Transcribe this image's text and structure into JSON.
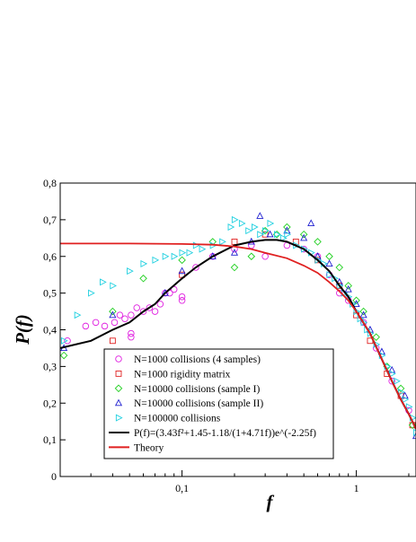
{
  "chart_data": {
    "type": "scatter",
    "xlabel": "f",
    "ylabel": "P(f)",
    "xscale": "log",
    "xlim": [
      0.02,
      2.2
    ],
    "ylim": [
      0,
      0.8
    ],
    "x_ticks": [
      0.1,
      1
    ],
    "x_tick_labels": [
      "0,1",
      "1"
    ],
    "y_ticks": [
      0,
      0.1,
      0.2,
      0.3,
      0.4,
      0.5,
      0.6,
      0.7,
      0.8
    ],
    "y_tick_labels": [
      "0",
      "0,1",
      "0,2",
      "0,3",
      "0,4",
      "0,5",
      "0,6",
      "0,7",
      "0,8"
    ],
    "grid": false,
    "legend_position": "bottom-left",
    "legend_entries": [
      "N=1000 collisions (4 samples)",
      "N=1000 rigidity matrix",
      "N=10000 collisions (sample I)",
      "N=10000 collisions (sample II)",
      "N=100000 collisions",
      "P(f)=(3.43f²+1.45-1.18/(1+4.71f))e^(-2.25f)",
      "Theory"
    ],
    "series": [
      {
        "name": "N=1000 collisions (4 samples)",
        "marker": "circle",
        "color": "#e020e0",
        "points": [
          [
            0.022,
            0.37
          ],
          [
            0.028,
            0.41
          ],
          [
            0.032,
            0.42
          ],
          [
            0.036,
            0.41
          ],
          [
            0.041,
            0.42
          ],
          [
            0.044,
            0.44
          ],
          [
            0.047,
            0.43
          ],
          [
            0.051,
            0.38
          ],
          [
            0.051,
            0.39
          ],
          [
            0.051,
            0.44
          ],
          [
            0.055,
            0.46
          ],
          [
            0.06,
            0.45
          ],
          [
            0.065,
            0.46
          ],
          [
            0.07,
            0.45
          ],
          [
            0.075,
            0.47
          ],
          [
            0.08,
            0.5
          ],
          [
            0.085,
            0.5
          ],
          [
            0.09,
            0.51
          ],
          [
            0.1,
            0.48
          ],
          [
            0.1,
            0.49
          ],
          [
            0.12,
            0.57
          ],
          [
            0.15,
            0.6
          ],
          [
            0.2,
            0.62
          ],
          [
            0.25,
            0.63
          ],
          [
            0.3,
            0.6
          ],
          [
            0.4,
            0.63
          ],
          [
            0.5,
            0.62
          ],
          [
            0.6,
            0.6
          ],
          [
            0.7,
            0.55
          ],
          [
            0.8,
            0.5
          ],
          [
            0.9,
            0.48
          ],
          [
            1.1,
            0.42
          ],
          [
            1.3,
            0.35
          ],
          [
            1.6,
            0.26
          ],
          [
            2.0,
            0.18
          ]
        ]
      },
      {
        "name": "N=1000 rigidity matrix",
        "marker": "square",
        "color": "#e02020",
        "points": [
          [
            0.04,
            0.37
          ],
          [
            0.1,
            0.55
          ],
          [
            0.2,
            0.64
          ],
          [
            0.3,
            0.66
          ],
          [
            0.45,
            0.64
          ],
          [
            0.6,
            0.59
          ],
          [
            0.8,
            0.52
          ],
          [
            1.0,
            0.44
          ],
          [
            1.2,
            0.37
          ],
          [
            1.5,
            0.28
          ],
          [
            1.8,
            0.22
          ],
          [
            2.1,
            0.14
          ]
        ]
      },
      {
        "name": "N=10000 collisions (sample I)",
        "marker": "diamond",
        "color": "#20d020",
        "points": [
          [
            0.021,
            0.33
          ],
          [
            0.04,
            0.45
          ],
          [
            0.06,
            0.54
          ],
          [
            0.1,
            0.59
          ],
          [
            0.15,
            0.64
          ],
          [
            0.2,
            0.57
          ],
          [
            0.25,
            0.6
          ],
          [
            0.3,
            0.67
          ],
          [
            0.35,
            0.66
          ],
          [
            0.4,
            0.68
          ],
          [
            0.5,
            0.66
          ],
          [
            0.6,
            0.64
          ],
          [
            0.7,
            0.6
          ],
          [
            0.8,
            0.57
          ],
          [
            0.9,
            0.52
          ],
          [
            1.0,
            0.48
          ],
          [
            1.1,
            0.45
          ],
          [
            1.3,
            0.38
          ],
          [
            1.5,
            0.3
          ],
          [
            1.8,
            0.24
          ],
          [
            2.1,
            0.14
          ]
        ]
      },
      {
        "name": "N=10000 collisions (sample II)",
        "marker": "triangle-up",
        "color": "#2020d0",
        "points": [
          [
            0.021,
            0.35
          ],
          [
            0.04,
            0.44
          ],
          [
            0.08,
            0.5
          ],
          [
            0.1,
            0.56
          ],
          [
            0.15,
            0.6
          ],
          [
            0.2,
            0.61
          ],
          [
            0.25,
            0.64
          ],
          [
            0.28,
            0.71
          ],
          [
            0.32,
            0.66
          ],
          [
            0.4,
            0.67
          ],
          [
            0.5,
            0.65
          ],
          [
            0.55,
            0.69
          ],
          [
            0.6,
            0.6
          ],
          [
            0.7,
            0.58
          ],
          [
            0.8,
            0.53
          ],
          [
            0.9,
            0.51
          ],
          [
            1.0,
            0.47
          ],
          [
            1.1,
            0.44
          ],
          [
            1.2,
            0.4
          ],
          [
            1.4,
            0.34
          ],
          [
            1.6,
            0.29
          ],
          [
            1.9,
            0.22
          ],
          [
            2.2,
            0.11
          ]
        ]
      },
      {
        "name": "N=100000 collisions",
        "marker": "triangle-right",
        "color": "#20d0e0",
        "points": [
          [
            0.021,
            0.37
          ],
          [
            0.025,
            0.44
          ],
          [
            0.03,
            0.5
          ],
          [
            0.035,
            0.53
          ],
          [
            0.04,
            0.52
          ],
          [
            0.05,
            0.56
          ],
          [
            0.06,
            0.58
          ],
          [
            0.07,
            0.59
          ],
          [
            0.08,
            0.6
          ],
          [
            0.09,
            0.6
          ],
          [
            0.1,
            0.61
          ],
          [
            0.11,
            0.61
          ],
          [
            0.12,
            0.63
          ],
          [
            0.13,
            0.62
          ],
          [
            0.15,
            0.63
          ],
          [
            0.17,
            0.64
          ],
          [
            0.19,
            0.68
          ],
          [
            0.2,
            0.7
          ],
          [
            0.22,
            0.69
          ],
          [
            0.24,
            0.67
          ],
          [
            0.26,
            0.68
          ],
          [
            0.28,
            0.66
          ],
          [
            0.3,
            0.67
          ],
          [
            0.32,
            0.69
          ],
          [
            0.35,
            0.66
          ],
          [
            0.38,
            0.65
          ],
          [
            0.4,
            0.66
          ],
          [
            0.45,
            0.63
          ],
          [
            0.5,
            0.62
          ],
          [
            0.55,
            0.61
          ],
          [
            0.6,
            0.59
          ],
          [
            0.65,
            0.58
          ],
          [
            0.7,
            0.55
          ],
          [
            0.75,
            0.54
          ],
          [
            0.8,
            0.52
          ],
          [
            0.85,
            0.5
          ],
          [
            0.9,
            0.49
          ],
          [
            0.95,
            0.47
          ],
          [
            1.0,
            0.45
          ],
          [
            1.05,
            0.43
          ],
          [
            1.1,
            0.42
          ],
          [
            1.15,
            0.4
          ],
          [
            1.2,
            0.39
          ],
          [
            1.3,
            0.36
          ],
          [
            1.4,
            0.33
          ],
          [
            1.5,
            0.3
          ],
          [
            1.6,
            0.28
          ],
          [
            1.7,
            0.26
          ],
          [
            1.8,
            0.23
          ],
          [
            1.9,
            0.21
          ],
          [
            2.0,
            0.19
          ],
          [
            2.1,
            0.16
          ],
          [
            2.2,
            0.12
          ]
        ]
      }
    ],
    "curves": [
      {
        "name": "P(f)=(3.43f²+1.45-1.18/(1+4.71f))e^(-2.25f)",
        "color": "#000000",
        "points": [
          [
            0.02,
            0.35
          ],
          [
            0.03,
            0.37
          ],
          [
            0.04,
            0.4
          ],
          [
            0.05,
            0.42
          ],
          [
            0.06,
            0.45
          ],
          [
            0.07,
            0.47
          ],
          [
            0.08,
            0.5
          ],
          [
            0.1,
            0.54
          ],
          [
            0.12,
            0.57
          ],
          [
            0.15,
            0.6
          ],
          [
            0.2,
            0.63
          ],
          [
            0.25,
            0.64
          ],
          [
            0.3,
            0.645
          ],
          [
            0.35,
            0.645
          ],
          [
            0.4,
            0.64
          ],
          [
            0.5,
            0.62
          ],
          [
            0.6,
            0.59
          ],
          [
            0.7,
            0.56
          ],
          [
            0.8,
            0.52
          ],
          [
            0.9,
            0.49
          ],
          [
            1.0,
            0.45
          ],
          [
            1.2,
            0.39
          ],
          [
            1.4,
            0.32
          ],
          [
            1.6,
            0.26
          ],
          [
            1.8,
            0.21
          ],
          [
            2.0,
            0.17
          ],
          [
            2.2,
            0.13
          ]
        ]
      },
      {
        "name": "Theory",
        "color": "#e02020",
        "points": [
          [
            0.02,
            0.635
          ],
          [
            0.05,
            0.635
          ],
          [
            0.1,
            0.634
          ],
          [
            0.15,
            0.632
          ],
          [
            0.2,
            0.627
          ],
          [
            0.25,
            0.62
          ],
          [
            0.3,
            0.61
          ],
          [
            0.4,
            0.595
          ],
          [
            0.5,
            0.575
          ],
          [
            0.6,
            0.555
          ],
          [
            0.7,
            0.53
          ],
          [
            0.8,
            0.505
          ],
          [
            0.9,
            0.48
          ],
          [
            1.0,
            0.45
          ],
          [
            1.2,
            0.39
          ],
          [
            1.4,
            0.32
          ],
          [
            1.6,
            0.26
          ],
          [
            1.8,
            0.21
          ],
          [
            2.0,
            0.17
          ],
          [
            2.2,
            0.13
          ]
        ]
      }
    ]
  }
}
